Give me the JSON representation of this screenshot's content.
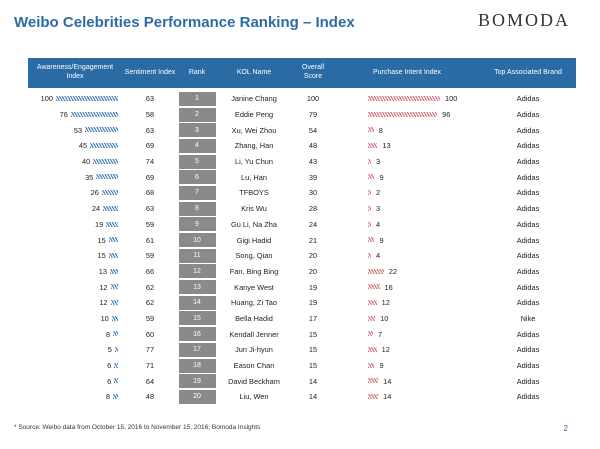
{
  "title": "Weibo Celebrities Performance Ranking – Index",
  "logo": "BOMODA",
  "header": {
    "awareness": "Awareness/Engagement Index",
    "sentiment": "Sentiment Index",
    "rank": "Rank",
    "kol": "KOL Name",
    "overall": "Overall Score",
    "purchase": "Purchase Intent Index",
    "brand": "Top Associated Brand"
  },
  "rows": [
    {
      "awareness": 100,
      "sentiment": 63,
      "rank": 1,
      "name": "Janine Chang",
      "overall": 100,
      "purchase": 100,
      "brand": "Adidas"
    },
    {
      "awareness": 76,
      "sentiment": 58,
      "rank": 2,
      "name": "Eddie Peng",
      "overall": 79,
      "purchase": 96,
      "brand": "Adidas"
    },
    {
      "awareness": 53,
      "sentiment": 63,
      "rank": 3,
      "name": "Xu, Wei Zhou",
      "overall": 54,
      "purchase": 8,
      "brand": "Adidas"
    },
    {
      "awareness": 45,
      "sentiment": 69,
      "rank": 4,
      "name": "Zhang, Han",
      "overall": 48,
      "purchase": 13,
      "brand": "Adidas"
    },
    {
      "awareness": 40,
      "sentiment": 74,
      "rank": 5,
      "name": "Li, Yu Chun",
      "overall": 43,
      "purchase": 3,
      "brand": "Adidas"
    },
    {
      "awareness": 35,
      "sentiment": 69,
      "rank": 6,
      "name": "Lu, Han",
      "overall": 39,
      "purchase": 9,
      "brand": "Adidas"
    },
    {
      "awareness": 26,
      "sentiment": 68,
      "rank": 7,
      "name": "TFBOYS",
      "overall": 30,
      "purchase": 2,
      "brand": "Adidas"
    },
    {
      "awareness": 24,
      "sentiment": 63,
      "rank": 8,
      "name": "Kris Wu",
      "overall": 28,
      "purchase": 3,
      "brand": "Adidas"
    },
    {
      "awareness": 19,
      "sentiment": 59,
      "rank": 9,
      "name": "Gu Li, Na Zha",
      "overall": 24,
      "purchase": 4,
      "brand": "Adidas"
    },
    {
      "awareness": 15,
      "sentiment": 61,
      "rank": 10,
      "name": "Gigi Hadid",
      "overall": 21,
      "purchase": 9,
      "brand": "Adidas"
    },
    {
      "awareness": 15,
      "sentiment": 59,
      "rank": 11,
      "name": "Song, Qian",
      "overall": 20,
      "purchase": 4,
      "brand": "Adidas"
    },
    {
      "awareness": 13,
      "sentiment": 66,
      "rank": 12,
      "name": "Fan, Bing Bing",
      "overall": 20,
      "purchase": 22,
      "brand": "Adidas"
    },
    {
      "awareness": 12,
      "sentiment": 62,
      "rank": 13,
      "name": "Kanye West",
      "overall": 19,
      "purchase": 16,
      "brand": "Adidas"
    },
    {
      "awareness": 12,
      "sentiment": 62,
      "rank": 14,
      "name": "Huang, Zi Tao",
      "overall": 19,
      "purchase": 12,
      "brand": "Adidas"
    },
    {
      "awareness": 10,
      "sentiment": 59,
      "rank": 15,
      "name": "Bella Hadid",
      "overall": 17,
      "purchase": 10,
      "brand": "Nike"
    },
    {
      "awareness": 8,
      "sentiment": 60,
      "rank": 16,
      "name": "Kendall Jenner",
      "overall": 15,
      "purchase": 7,
      "brand": "Adidas"
    },
    {
      "awareness": 5,
      "sentiment": 77,
      "rank": 17,
      "name": "Jun Ji-hyun",
      "overall": 15,
      "purchase": 12,
      "brand": "Adidas"
    },
    {
      "awareness": 6,
      "sentiment": 71,
      "rank": 18,
      "name": "Eason Chan",
      "overall": 15,
      "purchase": 9,
      "brand": "Adidas"
    },
    {
      "awareness": 6,
      "sentiment": 64,
      "rank": 19,
      "name": "David Beckham",
      "overall": 14,
      "purchase": 14,
      "brand": "Adidas"
    },
    {
      "awareness": 8,
      "sentiment": 48,
      "rank": 20,
      "name": "Liu, Wen",
      "overall": 14,
      "purchase": 14,
      "brand": "Adidas"
    }
  ],
  "footnote": "* Source: Weibo data from October 15, 2016 to November 15, 2016; Bomoda Insights",
  "page_number": "2",
  "colors": {
    "header": "#2a6aa5",
    "awareness_bar": "#4b82b8",
    "purchase_bar": "#d8727a",
    "rank_cell": "#8a8a8a"
  }
}
